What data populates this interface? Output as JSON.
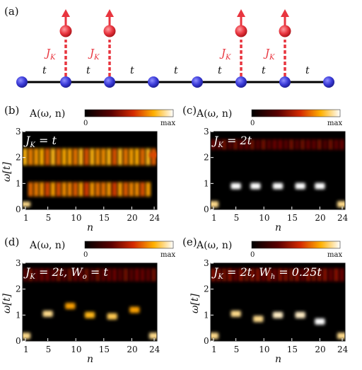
{
  "figure": {
    "panel_a": {
      "label": "(a)",
      "hopping_label": "t",
      "coupling_label": "J",
      "coupling_sub": "K",
      "num_sites": 8,
      "spin_sites": [
        1,
        2,
        5,
        6
      ],
      "colors": {
        "site": "#3b3bd9",
        "spin": "#e8353f",
        "bond": "#000000"
      }
    },
    "colorbar": {
      "title": "A(ω, n)",
      "min_label": "0",
      "max_label": "max"
    },
    "panels": [
      {
        "label": "(b)",
        "inset": "J_K = t",
        "inset_parts": [
          "J",
          "K",
          " = t"
        ],
        "xlabel": "n",
        "ylabel": "ω[t]",
        "xticks": [
          "1",
          "5",
          "10",
          "15",
          "20",
          "24"
        ],
        "yticks": [
          "0",
          "1",
          "2",
          "3"
        ],
        "show_colorbar": true
      },
      {
        "label": "(c)",
        "inset": "J_K = 2t",
        "inset_parts": [
          "J",
          "K",
          " = 2t"
        ],
        "xlabel": "n",
        "ylabel": "",
        "xticks": [
          "1",
          "5",
          "10",
          "15",
          "20",
          "24"
        ],
        "yticks": [
          "0",
          "1",
          "2",
          "3"
        ],
        "show_colorbar": true
      },
      {
        "label": "(d)",
        "inset": "J_K = 2t, W_o = t",
        "inset_parts": [
          "J",
          "K",
          " = 2t, W",
          "o",
          " = t"
        ],
        "xlabel": "n",
        "ylabel": "ω[t]",
        "xticks": [
          "1",
          "5",
          "10",
          "15",
          "20",
          "24"
        ],
        "yticks": [
          "0",
          "1",
          "2",
          "3"
        ],
        "show_colorbar": true
      },
      {
        "label": "(e)",
        "inset": "J_K = 2t, W_h = 0.25t",
        "inset_parts": [
          "J",
          "K",
          " = 2t, W",
          "h",
          " = 0.25t"
        ],
        "xlabel": "n",
        "ylabel": "ω[t]",
        "xticks": [
          "1",
          "5",
          "10",
          "15",
          "20",
          "24"
        ],
        "yticks": [
          "0",
          "1",
          "2",
          "3"
        ],
        "show_colorbar": true
      }
    ]
  },
  "chart_data": [
    {
      "type": "heatmap",
      "title": "J_K = t",
      "xlabel": "n",
      "ylabel": "ω[t]",
      "xlim": [
        1,
        24
      ],
      "ylim": [
        0,
        3
      ],
      "colorbar": [
        "0",
        "max"
      ],
      "features": [
        {
          "n_range": [
            1,
            24
          ],
          "omega_range": [
            1.7,
            2.35
          ],
          "intensity": 0.8,
          "note": "broad band near omega = 2 across all n"
        },
        {
          "n_range": [
            2,
            23
          ],
          "omega_range": [
            0.5,
            1.05
          ],
          "intensity": 0.75,
          "note": "broad band near omega = 0.8 across n"
        },
        {
          "n": 1,
          "omega_range": [
            0.1,
            0.3
          ],
          "intensity": 0.9,
          "note": "edge state at n = 1"
        },
        {
          "n": 24,
          "omega_range": [
            2.0,
            2.2
          ],
          "intensity": 0.6
        }
      ]
    },
    {
      "type": "heatmap",
      "title": "J_K = 2t",
      "xlabel": "n",
      "ylabel": "ω[t]",
      "xlim": [
        1,
        24
      ],
      "ylim": [
        0,
        3
      ],
      "colorbar": [
        "0",
        "max"
      ],
      "features": [
        {
          "n": 5,
          "omega": 0.9,
          "intensity": 1.0
        },
        {
          "n": 8.5,
          "omega": 0.9,
          "intensity": 1.0
        },
        {
          "n": 12.5,
          "omega": 0.9,
          "intensity": 1.0
        },
        {
          "n": 16.5,
          "omega": 0.9,
          "intensity": 1.0
        },
        {
          "n": 20,
          "omega": 0.9,
          "intensity": 1.0
        },
        {
          "n_range": [
            1,
            24
          ],
          "omega_range": [
            2.3,
            2.7
          ],
          "intensity": 0.35,
          "note": "weak band near omega = 2.5"
        },
        {
          "n": 1,
          "omega": 0.2,
          "intensity": 0.9
        },
        {
          "n": 24,
          "omega": 0.2,
          "intensity": 0.9
        }
      ]
    },
    {
      "type": "heatmap",
      "title": "J_K = 2t, W_o = t",
      "xlabel": "n",
      "ylabel": "ω[t]",
      "xlim": [
        1,
        24
      ],
      "ylim": [
        0,
        3
      ],
      "colorbar": [
        "0",
        "max"
      ],
      "features": [
        {
          "n": 5,
          "omega": 1.05,
          "intensity": 0.9
        },
        {
          "n": 9,
          "omega": 1.35,
          "intensity": 0.75
        },
        {
          "n": 12.5,
          "omega": 1.0,
          "intensity": 0.8
        },
        {
          "n": 16.5,
          "omega": 0.95,
          "intensity": 0.85
        },
        {
          "n": 20.5,
          "omega": 1.2,
          "intensity": 0.75
        },
        {
          "n_range": [
            1,
            24
          ],
          "omega_range": [
            2.3,
            2.8
          ],
          "intensity": 0.35
        },
        {
          "n": 1,
          "omega": 0.2,
          "intensity": 0.9
        },
        {
          "n": 24,
          "omega": 0.2,
          "intensity": 0.9
        }
      ]
    },
    {
      "type": "heatmap",
      "title": "J_K = 2t, W_h = 0.25t",
      "xlabel": "n",
      "ylabel": "ω[t]",
      "xlim": [
        1,
        24
      ],
      "ylim": [
        0,
        3
      ],
      "colorbar": [
        "0",
        "max"
      ],
      "features": [
        {
          "n": 5,
          "omega": 1.05,
          "intensity": 0.9
        },
        {
          "n": 9,
          "omega": 0.85,
          "intensity": 0.9
        },
        {
          "n": 12.5,
          "omega": 1.0,
          "intensity": 0.95
        },
        {
          "n": 16.5,
          "omega": 1.0,
          "intensity": 0.95
        },
        {
          "n": 20,
          "omega": 0.75,
          "intensity": 1.0
        },
        {
          "n_range": [
            1,
            24
          ],
          "omega_range": [
            2.3,
            2.8
          ],
          "intensity": 0.4
        },
        {
          "n": 1,
          "omega": 0.2,
          "intensity": 0.9
        },
        {
          "n": 24,
          "omega": 0.2,
          "intensity": 0.9
        }
      ]
    }
  ]
}
